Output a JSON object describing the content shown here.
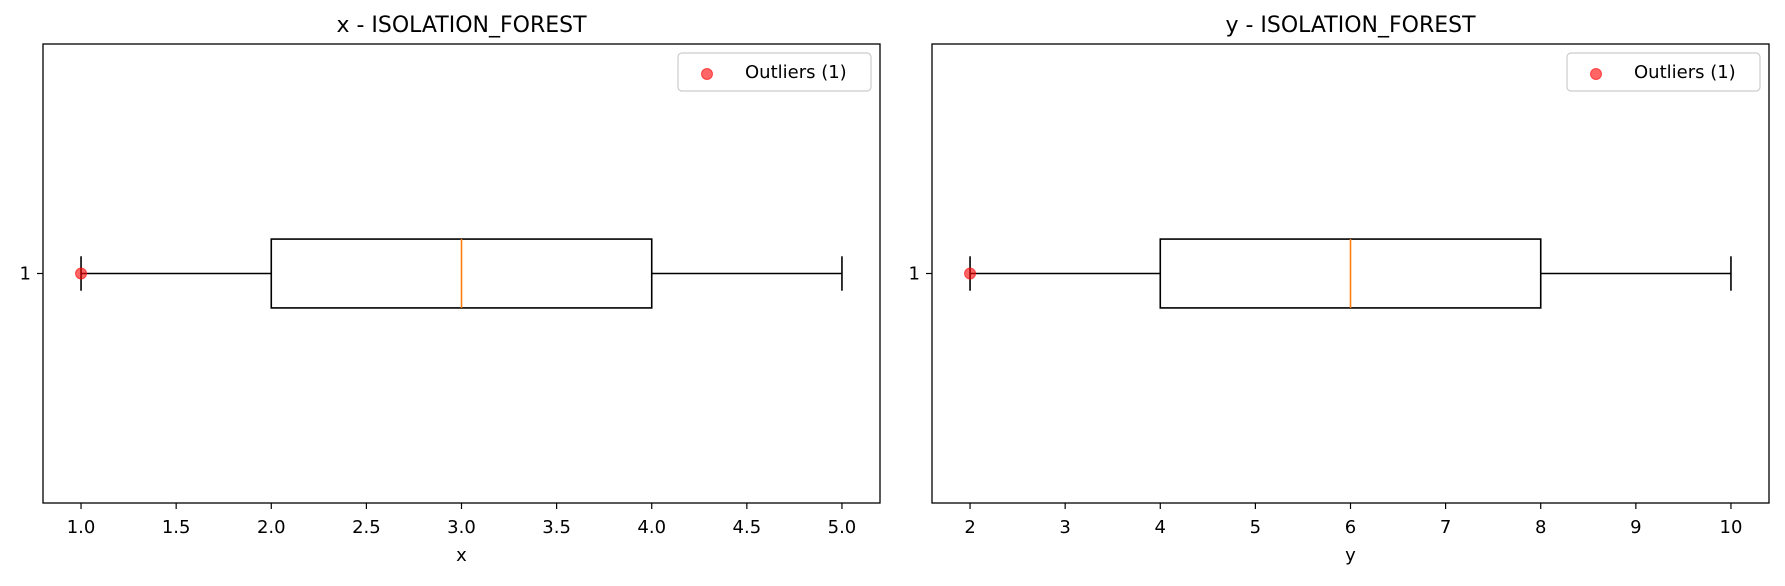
{
  "chart_data": [
    {
      "type": "box",
      "title": "x - ISOLATION_FOREST",
      "xlabel": "x",
      "ylabel": "",
      "orientation": "horizontal",
      "xlim": [
        0.8,
        5.2
      ],
      "xticks": [
        1.0,
        1.5,
        2.0,
        2.5,
        3.0,
        3.5,
        4.0,
        4.5,
        5.0
      ],
      "xtick_labels": [
        "1.0",
        "1.5",
        "2.0",
        "2.5",
        "3.0",
        "3.5",
        "4.0",
        "4.5",
        "5.0"
      ],
      "ytick_labels": [
        "1"
      ],
      "box": {
        "position": 1,
        "whisker_low": 1.0,
        "q1": 2.0,
        "median": 3.0,
        "q3": 4.0,
        "whisker_high": 5.0
      },
      "outliers": {
        "name": "Outliers (1)",
        "x": [
          1.0
        ],
        "y": [
          1
        ]
      },
      "legend_position": "upper right",
      "grid": false
    },
    {
      "type": "box",
      "title": "y - ISOLATION_FOREST",
      "xlabel": "y",
      "ylabel": "",
      "orientation": "horizontal",
      "xlim": [
        1.6,
        10.4
      ],
      "xticks": [
        2,
        3,
        4,
        5,
        6,
        7,
        8,
        9,
        10
      ],
      "xtick_labels": [
        "2",
        "3",
        "4",
        "5",
        "6",
        "7",
        "8",
        "9",
        "10"
      ],
      "ytick_labels": [
        "1"
      ],
      "box": {
        "position": 1,
        "whisker_low": 2,
        "q1": 4,
        "median": 6,
        "q3": 8,
        "whisker_high": 10
      },
      "outliers": {
        "name": "Outliers (1)",
        "x": [
          2
        ],
        "y": [
          1
        ]
      },
      "legend_position": "upper right",
      "grid": false
    }
  ],
  "colors": {
    "box_edge": "#000000",
    "median": "#ff7f0e",
    "outlier": "#ff0000"
  }
}
